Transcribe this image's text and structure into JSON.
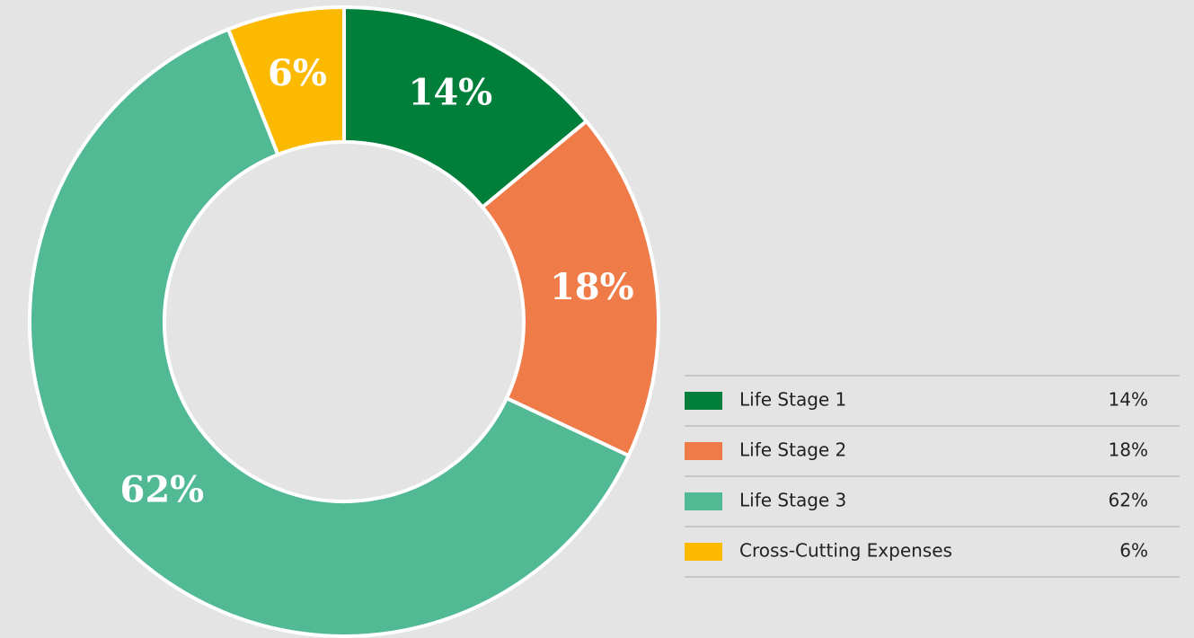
{
  "chart_data": {
    "type": "donut",
    "categories": [
      "Life Stage 1",
      "Life Stage 2",
      "Life Stage 3",
      "Cross-Cutting Expenses"
    ],
    "values": [
      14,
      18,
      62,
      6
    ],
    "value_labels": [
      "14%",
      "18%",
      "62%",
      "6%"
    ],
    "colors": [
      "#007f3a",
      "#ef7b49",
      "#51b994",
      "#fbb900"
    ],
    "legend": "right"
  }
}
